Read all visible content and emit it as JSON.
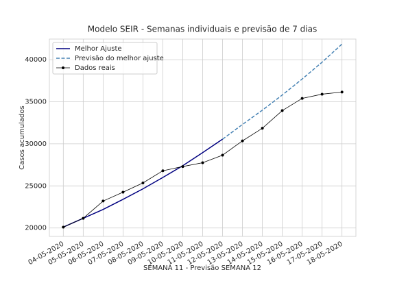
{
  "chart_data": {
    "type": "line",
    "title": "Modelo SEIR - Semanas individuais e previsão de 7 dias",
    "x_label": "SEMANA 11 - Previsão SEMANA 12",
    "y_label": "Casos acumulados",
    "categories": [
      "04-05-2020",
      "05-05-2020",
      "06-05-2020",
      "07-05-2020",
      "08-05-2020",
      "09-05-2020",
      "10-05-2020",
      "11-05-2020",
      "12-05-2020",
      "13-05-2020",
      "14-05-2020",
      "15-05-2020",
      "16-05-2020",
      "17-05-2020",
      "18-05-2020"
    ],
    "series": [
      {
        "name": "Melhor Ajuste",
        "color": "#000080",
        "style": "solid",
        "marker": false,
        "values": [
          20100,
          21150,
          22200,
          23400,
          24650,
          26000,
          27400,
          28950,
          30550,
          null,
          null,
          null,
          null,
          null,
          null
        ]
      },
      {
        "name": "Previsão do melhor ajuste",
        "color": "#4682b4",
        "style": "dashed",
        "marker": false,
        "values": [
          null,
          null,
          null,
          null,
          null,
          null,
          null,
          null,
          30550,
          32300,
          34000,
          35800,
          37700,
          39700,
          41850
        ]
      },
      {
        "name": "Dados reais",
        "color": "#000000",
        "style": "solid",
        "marker": true,
        "values": [
          20100,
          21150,
          23200,
          24250,
          25350,
          26800,
          27300,
          27750,
          28650,
          30350,
          31850,
          33950,
          35400,
          35900,
          36150
        ]
      }
    ],
    "ylim": [
      19000,
      42450
    ],
    "yticks": [
      20000,
      25000,
      30000,
      35000,
      40000
    ],
    "grid": true,
    "legend": "upper left"
  }
}
